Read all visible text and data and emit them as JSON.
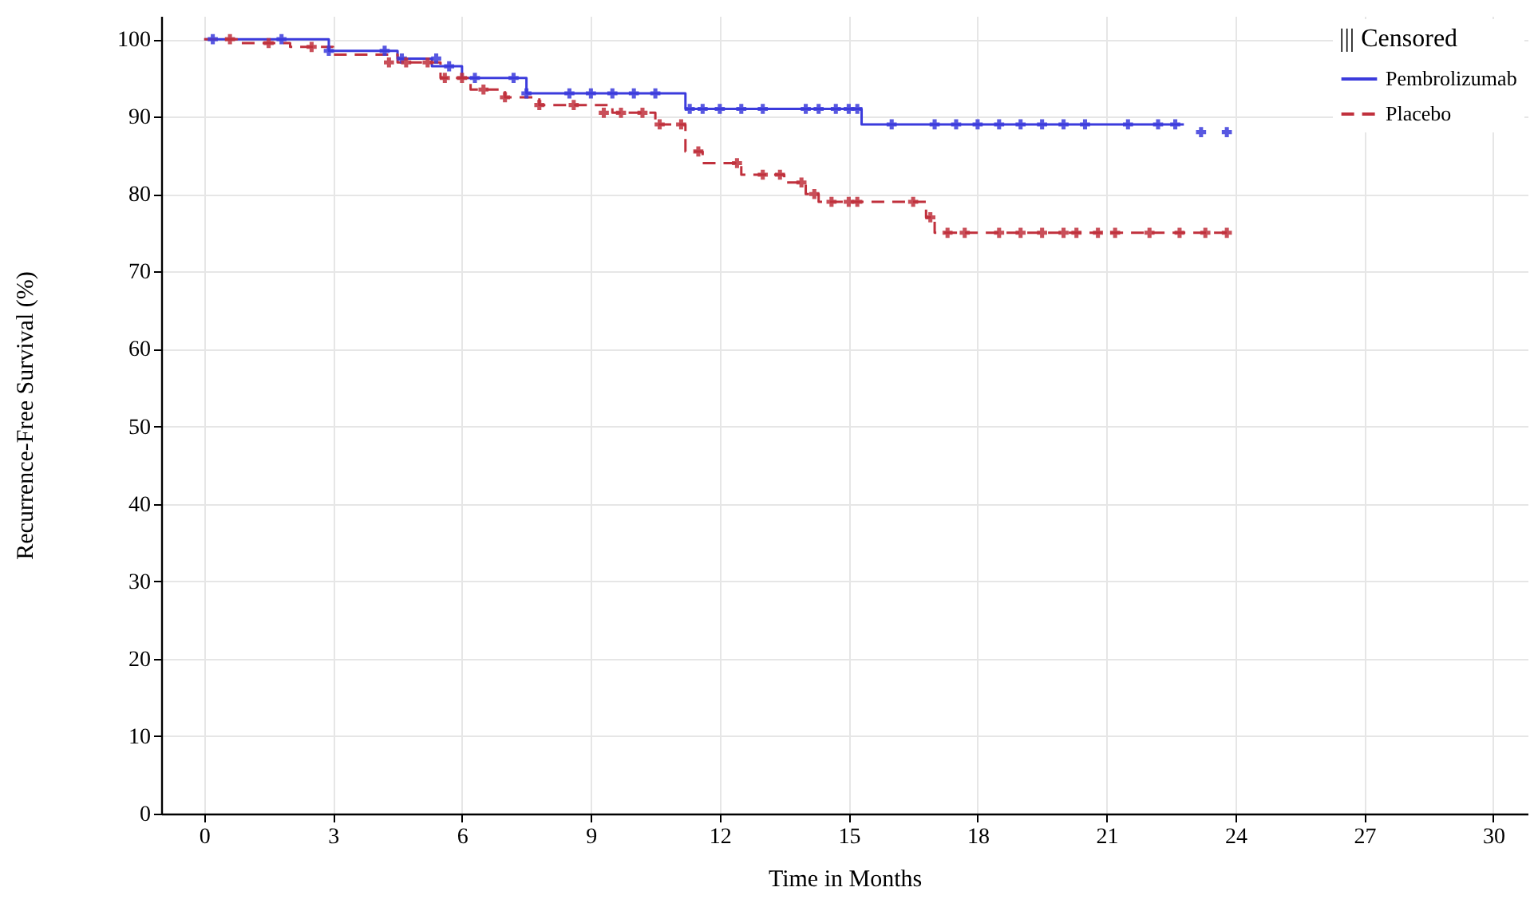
{
  "chart_data": {
    "type": "step",
    "xlabel": "Time in Months",
    "ylabel": "Recurrence-Free Survival (%)",
    "legend_title": "||| Censored",
    "legend": "top right",
    "grid": true,
    "xlim": [
      -1,
      30.8
    ],
    "ylim": [
      0,
      103
    ],
    "xticks": [
      0,
      3,
      6,
      9,
      12,
      15,
      18,
      21,
      24,
      27,
      30
    ],
    "yticks": [
      0,
      10,
      20,
      30,
      40,
      50,
      60,
      70,
      80,
      90,
      100
    ],
    "series": [
      {
        "name": "Pembrolizumab",
        "color": "#3b3bdc",
        "line_style": "solid",
        "x": [
          0,
          2.9,
          4.5,
          5.3,
          6.0,
          7.5,
          11.2,
          15.3,
          22.8
        ],
        "values": [
          100,
          98.5,
          97.5,
          96.5,
          95,
          93,
          91,
          89,
          89
        ]
      },
      {
        "name": "Placebo",
        "color": "#c0303c",
        "line_style": "dashed",
        "x": [
          0,
          0.8,
          2.0,
          3.0,
          4.5,
          5.5,
          6.2,
          7.0,
          7.8,
          9.5,
          10.5,
          11.2,
          11.6,
          12.5,
          13.5,
          14.0,
          14.3,
          16.8,
          17.0,
          23.8
        ],
        "values": [
          100,
          99.5,
          99,
          98,
          97,
          95,
          93.5,
          92.5,
          91.5,
          90.5,
          89,
          85.5,
          84,
          82.5,
          81.5,
          80,
          79,
          77,
          75,
          75
        ]
      },
      {
        "type": "scatter",
        "marker": "cross",
        "color": "#3b3bdc",
        "x": [
          0.2,
          1.8,
          2.9,
          4.2,
          4.6,
          5.4,
          5.7,
          6.3,
          7.2,
          7.5,
          8.5,
          9,
          9.5,
          10,
          10.5,
          11.3,
          11.6,
          12,
          12.5,
          13,
          14,
          14.3,
          14.7,
          15,
          15.2,
          16,
          17,
          17.5,
          18,
          18.5,
          19,
          19.5,
          20,
          20.5,
          21.5,
          22.2,
          22.6,
          23.2,
          23.8
        ],
        "values": [
          100,
          100,
          98.5,
          98.5,
          97.5,
          97.5,
          96.5,
          95,
          95,
          93,
          93,
          93,
          93,
          93,
          93,
          91,
          91,
          91,
          91,
          91,
          91,
          91,
          91,
          91,
          91,
          89,
          89,
          89,
          89,
          89,
          89,
          89,
          89,
          89,
          89,
          89,
          89,
          88,
          88
        ]
      },
      {
        "type": "scatter",
        "marker": "cross",
        "color": "#c0303c",
        "x": [
          0.6,
          1.5,
          2.5,
          4.3,
          4.7,
          5.2,
          5.6,
          6,
          6.5,
          7,
          7.8,
          8.6,
          9.3,
          9.7,
          10.2,
          10.6,
          11.1,
          11.5,
          12.4,
          13,
          13.4,
          13.9,
          14.2,
          14.6,
          15,
          15.2,
          16.5,
          16.9,
          17.3,
          17.7,
          18.5,
          19,
          19.5,
          20,
          20.3,
          20.8,
          21.2,
          22,
          22.7,
          23.3,
          23.8
        ],
        "values": [
          100,
          99.5,
          99,
          97,
          97,
          97,
          95,
          95,
          93.5,
          92.5,
          91.5,
          91.5,
          90.5,
          90.5,
          90.5,
          89,
          89,
          85.5,
          84,
          82.5,
          82.5,
          81.5,
          80,
          79,
          79,
          79,
          79,
          77,
          75,
          75,
          75,
          75,
          75,
          75,
          75,
          75,
          75,
          75,
          75,
          75,
          75
        ]
      }
    ]
  }
}
